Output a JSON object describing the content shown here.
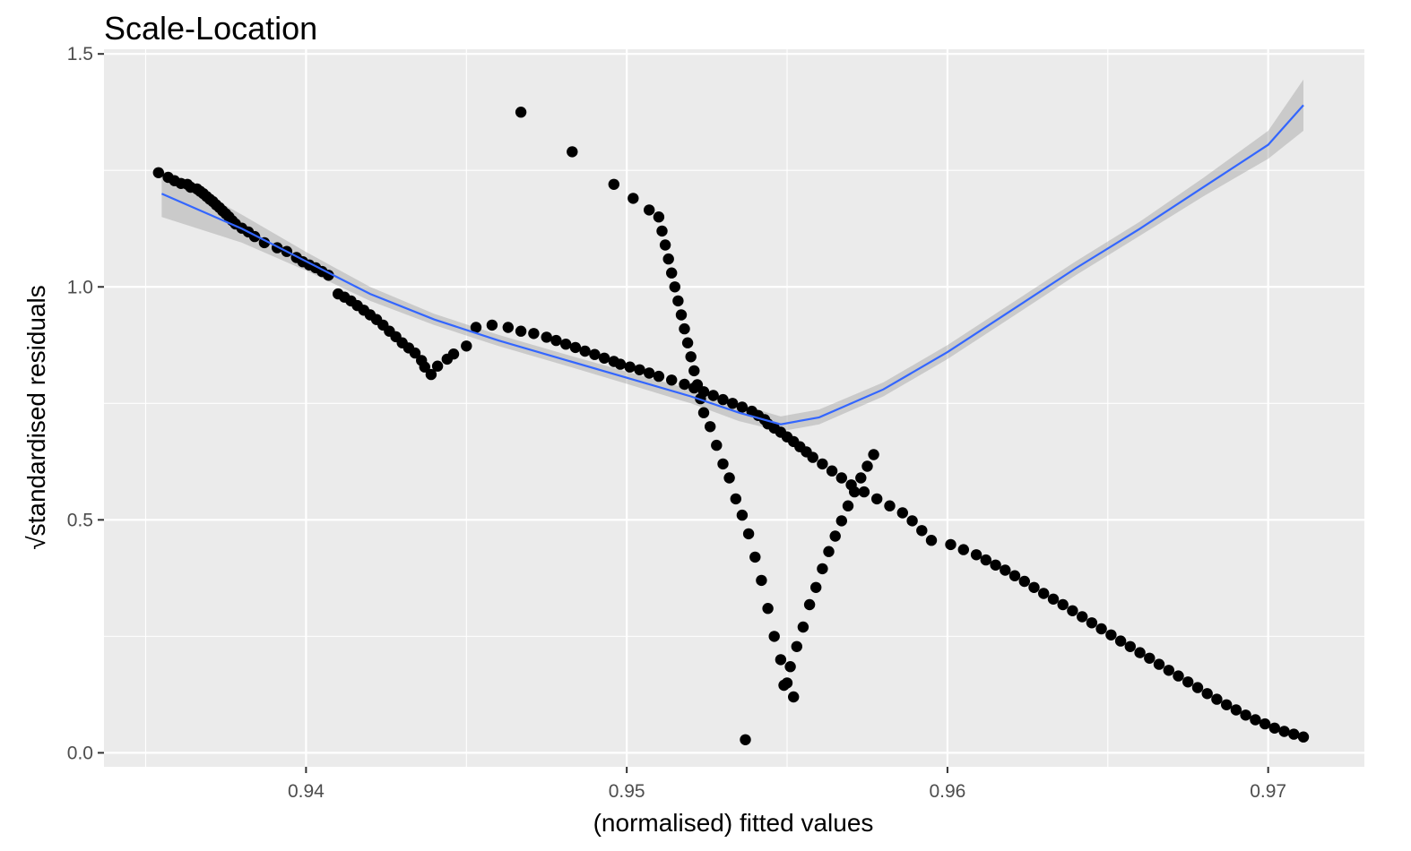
{
  "chart_data": {
    "type": "scatter",
    "title": "Scale-Location",
    "xlabel": "(normalised) fitted values",
    "ylabel": "√standardised residuals",
    "xlim": [
      0.9337,
      0.973
    ],
    "ylim": [
      -0.03,
      1.51
    ],
    "x_ticks": [
      0.94,
      0.95,
      0.96,
      0.97
    ],
    "x_tick_labels": [
      "0.94",
      "0.95",
      "0.96",
      "0.97"
    ],
    "y_ticks": [
      0.0,
      0.5,
      1.0,
      1.5
    ],
    "y_tick_labels": [
      "0.0",
      "0.5",
      "1.0",
      "1.5"
    ],
    "grid": true,
    "colors": {
      "panel": "#ebebeb",
      "points": "#000000",
      "smooth_line": "#3366ff",
      "ci_band": "#999999"
    },
    "series": [
      {
        "kind": "points",
        "points": [
          [
            0.9354,
            1.245
          ],
          [
            0.9357,
            1.235
          ],
          [
            0.9359,
            1.228
          ],
          [
            0.9361,
            1.222
          ],
          [
            0.9363,
            1.22
          ],
          [
            0.9364,
            1.214
          ],
          [
            0.9366,
            1.21
          ],
          [
            0.9367,
            1.205
          ],
          [
            0.9368,
            1.2
          ],
          [
            0.9369,
            1.194
          ],
          [
            0.937,
            1.188
          ],
          [
            0.9371,
            1.183
          ],
          [
            0.9372,
            1.176
          ],
          [
            0.9373,
            1.17
          ],
          [
            0.9374,
            1.163
          ],
          [
            0.9375,
            1.157
          ],
          [
            0.9376,
            1.15
          ],
          [
            0.9377,
            1.142
          ],
          [
            0.9378,
            1.135
          ],
          [
            0.938,
            1.126
          ],
          [
            0.9382,
            1.118
          ],
          [
            0.9384,
            1.108
          ],
          [
            0.9387,
            1.095
          ],
          [
            0.9391,
            1.084
          ],
          [
            0.9394,
            1.076
          ],
          [
            0.9397,
            1.063
          ],
          [
            0.9399,
            1.054
          ],
          [
            0.9401,
            1.047
          ],
          [
            0.9403,
            1.041
          ],
          [
            0.9405,
            1.033
          ],
          [
            0.9407,
            1.025
          ],
          [
            0.941,
            0.985
          ],
          [
            0.9412,
            0.978
          ],
          [
            0.9414,
            0.97
          ],
          [
            0.9416,
            0.96
          ],
          [
            0.9418,
            0.95
          ],
          [
            0.942,
            0.94
          ],
          [
            0.9422,
            0.93
          ],
          [
            0.9424,
            0.918
          ],
          [
            0.9426,
            0.905
          ],
          [
            0.9428,
            0.893
          ],
          [
            0.943,
            0.88
          ],
          [
            0.9432,
            0.869
          ],
          [
            0.9434,
            0.858
          ],
          [
            0.9436,
            0.842
          ],
          [
            0.9437,
            0.828
          ],
          [
            0.9439,
            0.812
          ],
          [
            0.9441,
            0.83
          ],
          [
            0.9444,
            0.845
          ],
          [
            0.9446,
            0.856
          ],
          [
            0.945,
            0.873
          ],
          [
            0.9453,
            0.913
          ],
          [
            0.9458,
            0.918
          ],
          [
            0.9463,
            0.913
          ],
          [
            0.9467,
            0.905
          ],
          [
            0.9471,
            0.9
          ],
          [
            0.9475,
            0.892
          ],
          [
            0.9478,
            0.885
          ],
          [
            0.9481,
            0.877
          ],
          [
            0.9484,
            0.87
          ],
          [
            0.9487,
            0.862
          ],
          [
            0.949,
            0.855
          ],
          [
            0.9493,
            0.847
          ],
          [
            0.9496,
            0.84
          ],
          [
            0.9498,
            0.834
          ],
          [
            0.9501,
            0.828
          ],
          [
            0.9504,
            0.822
          ],
          [
            0.9507,
            0.815
          ],
          [
            0.951,
            0.808
          ],
          [
            0.9514,
            0.8
          ],
          [
            0.9518,
            0.791
          ],
          [
            0.9521,
            0.783
          ],
          [
            0.9524,
            0.775
          ],
          [
            0.9527,
            0.767
          ],
          [
            0.953,
            0.758
          ],
          [
            0.9533,
            0.75
          ],
          [
            0.9536,
            0.742
          ],
          [
            0.9539,
            0.733
          ],
          [
            0.9541,
            0.724
          ],
          [
            0.9543,
            0.715
          ],
          [
            0.9544,
            0.706
          ],
          [
            0.9546,
            0.697
          ],
          [
            0.9548,
            0.688
          ],
          [
            0.955,
            0.678
          ],
          [
            0.9552,
            0.668
          ],
          [
            0.9554,
            0.657
          ],
          [
            0.9556,
            0.646
          ],
          [
            0.9558,
            0.634
          ],
          [
            0.9561,
            0.62
          ],
          [
            0.9564,
            0.605
          ],
          [
            0.9567,
            0.59
          ],
          [
            0.957,
            0.575
          ],
          [
            0.9574,
            0.56
          ],
          [
            0.9578,
            0.545
          ],
          [
            0.9582,
            0.53
          ],
          [
            0.9586,
            0.515
          ],
          [
            0.9589,
            0.498
          ],
          [
            0.9592,
            0.477
          ],
          [
            0.9595,
            0.456
          ],
          [
            0.9601,
            0.447
          ],
          [
            0.9605,
            0.436
          ],
          [
            0.9609,
            0.425
          ],
          [
            0.9612,
            0.414
          ],
          [
            0.9615,
            0.403
          ],
          [
            0.9618,
            0.392
          ],
          [
            0.9621,
            0.38
          ],
          [
            0.9624,
            0.368
          ],
          [
            0.9627,
            0.355
          ],
          [
            0.963,
            0.342
          ],
          [
            0.9633,
            0.33
          ],
          [
            0.9636,
            0.318
          ],
          [
            0.9639,
            0.305
          ],
          [
            0.9642,
            0.292
          ],
          [
            0.9645,
            0.279
          ],
          [
            0.9648,
            0.266
          ],
          [
            0.9651,
            0.253
          ],
          [
            0.9654,
            0.24
          ],
          [
            0.9657,
            0.228
          ],
          [
            0.966,
            0.215
          ],
          [
            0.9663,
            0.203
          ],
          [
            0.9666,
            0.19
          ],
          [
            0.9669,
            0.177
          ],
          [
            0.9672,
            0.165
          ],
          [
            0.9675,
            0.152
          ],
          [
            0.9678,
            0.14
          ],
          [
            0.9681,
            0.127
          ],
          [
            0.9684,
            0.115
          ],
          [
            0.9687,
            0.103
          ],
          [
            0.969,
            0.092
          ],
          [
            0.9693,
            0.081
          ],
          [
            0.9696,
            0.071
          ],
          [
            0.9699,
            0.062
          ],
          [
            0.9702,
            0.053
          ],
          [
            0.9705,
            0.046
          ],
          [
            0.9708,
            0.04
          ],
          [
            0.9711,
            0.034
          ],
          [
            0.9467,
            1.375
          ],
          [
            0.9483,
            1.29
          ],
          [
            0.9496,
            1.22
          ],
          [
            0.9502,
            1.19
          ],
          [
            0.9507,
            1.165
          ],
          [
            0.951,
            1.15
          ],
          [
            0.9511,
            1.12
          ],
          [
            0.9512,
            1.09
          ],
          [
            0.9513,
            1.06
          ],
          [
            0.9514,
            1.03
          ],
          [
            0.9515,
            1.0
          ],
          [
            0.9516,
            0.97
          ],
          [
            0.9517,
            0.94
          ],
          [
            0.9518,
            0.91
          ],
          [
            0.9519,
            0.88
          ],
          [
            0.952,
            0.85
          ],
          [
            0.9521,
            0.82
          ],
          [
            0.9522,
            0.79
          ],
          [
            0.9523,
            0.76
          ],
          [
            0.9524,
            0.73
          ],
          [
            0.9526,
            0.7
          ],
          [
            0.9528,
            0.66
          ],
          [
            0.953,
            0.62
          ],
          [
            0.9532,
            0.59
          ],
          [
            0.9534,
            0.545
          ],
          [
            0.9536,
            0.51
          ],
          [
            0.9538,
            0.47
          ],
          [
            0.954,
            0.42
          ],
          [
            0.9542,
            0.37
          ],
          [
            0.9544,
            0.31
          ],
          [
            0.9546,
            0.25
          ],
          [
            0.9548,
            0.2
          ],
          [
            0.955,
            0.15
          ],
          [
            0.9552,
            0.12
          ],
          [
            0.9537,
            0.028
          ],
          [
            0.9549,
            0.145
          ],
          [
            0.9551,
            0.185
          ],
          [
            0.9553,
            0.228
          ],
          [
            0.9555,
            0.27
          ],
          [
            0.9557,
            0.318
          ],
          [
            0.9559,
            0.355
          ],
          [
            0.9561,
            0.395
          ],
          [
            0.9563,
            0.432
          ],
          [
            0.9565,
            0.465
          ],
          [
            0.9567,
            0.498
          ],
          [
            0.9569,
            0.53
          ],
          [
            0.9571,
            0.56
          ],
          [
            0.9573,
            0.59
          ],
          [
            0.9575,
            0.615
          ],
          [
            0.9577,
            0.64
          ]
        ]
      },
      {
        "kind": "smooth",
        "name": "loess",
        "x": [
          0.9355,
          0.938,
          0.94,
          0.942,
          0.944,
          0.946,
          0.948,
          0.95,
          0.952,
          0.9535,
          0.9548,
          0.956,
          0.958,
          0.96,
          0.962,
          0.964,
          0.966,
          0.968,
          0.97,
          0.9711
        ],
        "y": [
          1.2,
          1.125,
          1.055,
          0.985,
          0.93,
          0.885,
          0.845,
          0.805,
          0.765,
          0.73,
          0.705,
          0.72,
          0.78,
          0.86,
          0.95,
          1.04,
          1.125,
          1.215,
          1.305,
          1.39
        ],
        "lower": [
          1.15,
          1.095,
          1.035,
          0.97,
          0.918,
          0.873,
          0.833,
          0.792,
          0.75,
          0.712,
          0.69,
          0.705,
          0.765,
          0.845,
          0.935,
          1.025,
          1.11,
          1.195,
          1.275,
          1.335
        ],
        "upper": [
          1.25,
          1.155,
          1.075,
          1.0,
          0.942,
          0.897,
          0.857,
          0.818,
          0.78,
          0.748,
          0.722,
          0.737,
          0.795,
          0.875,
          0.965,
          1.055,
          1.14,
          1.235,
          1.335,
          1.445
        ]
      }
    ]
  }
}
